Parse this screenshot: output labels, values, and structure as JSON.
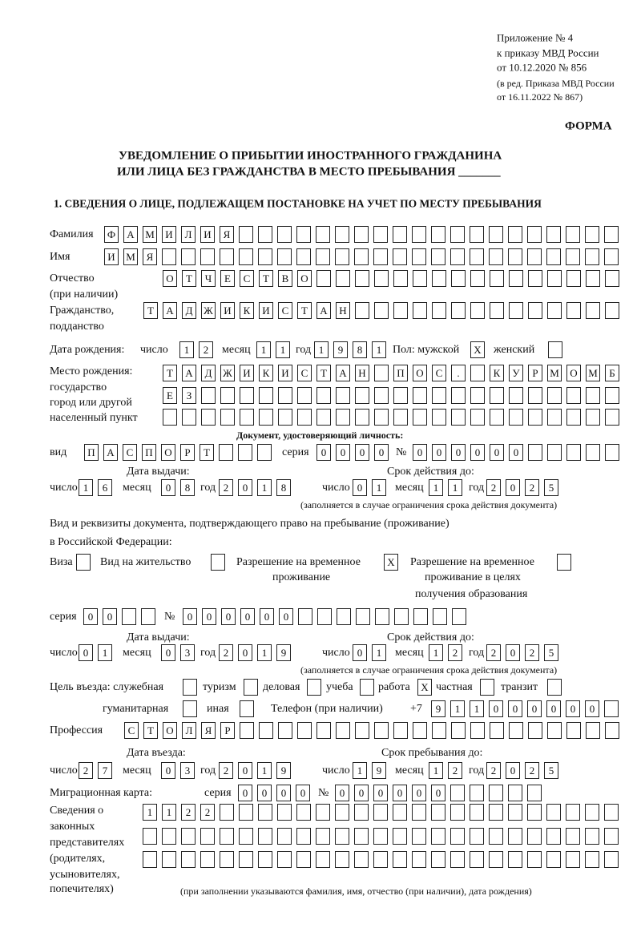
{
  "header": {
    "appendix": [
      "Приложение № 4",
      "к приказу МВД России",
      "от 10.12.2020 № 856"
    ],
    "revision": [
      "(в ред. Приказа МВД России",
      "от 16.11.2022 № 867)"
    ],
    "form_label": "ФОРМА",
    "title_line1": "УВЕДОМЛЕНИЕ О ПРИБЫТИИ ИНОСТРАННОГО ГРАЖДАНИНА",
    "title_line2": "ИЛИ ЛИЦА БЕЗ ГРАЖДАНСТВА В МЕСТО ПРЕБЫВАНИЯ _______",
    "section1": "1. СВЕДЕНИЯ О ЛИЦЕ, ПОДЛЕЖАЩЕМ ПОСТАНОВКЕ НА УЧЕТ ПО МЕСТУ ПРЕБЫВАНИЯ"
  },
  "labels": {
    "surname": "Фамилия",
    "name": "Имя",
    "patronymic": "Отчество",
    "patronymic_note": "(при наличии)",
    "citizenship": "Гражданство,",
    "citizenship2": "подданство",
    "birth_date": "Дата рождения:",
    "day": "число",
    "month": "месяц",
    "year": "год",
    "sex": "Пол: мужской",
    "female": "женский",
    "birthplace": [
      "Место рождения:",
      "государство",
      "город или другой",
      "населенный пункт"
    ],
    "id_doc_heading": "Документ, удостоверяющий личность:",
    "kind": "вид",
    "series": "серия",
    "number": "№",
    "issue_date": "Дата выдачи:",
    "valid_until": "Срок действия до:",
    "validity_note": "(заполняется в случае ограничения срока действия документа)",
    "residence_doc": "Вид и реквизиты документа, подтверждающего право на пребывание (проживание)",
    "residence_doc2": "в Российской Федерации:",
    "visa": "Виза",
    "residence_permit": "Вид на жительство",
    "temp_permit": [
      "Разрешение на временное",
      "проживание"
    ],
    "temp_permit_edu": [
      "Разрешение на временное",
      "проживание в целях",
      "получения образования"
    ],
    "purpose": "Цель въезда: служебная",
    "tourism": "туризм",
    "business": "деловая",
    "study": "учеба",
    "work": "работа",
    "private": "частная",
    "transit": "транзит",
    "humanitarian": "гуманитарная",
    "other": "иная",
    "phone": "Телефон (при наличии)",
    "phone_prefix": "+7",
    "profession": "Профессия",
    "entry_date": "Дата въезда:",
    "stay_until": "Срок пребывания до:",
    "migration_card": "Миграционная карта:",
    "representatives": [
      "Сведения о",
      "законных",
      "представителях",
      "(родителях,",
      "усыновителях,",
      "попечителях)"
    ],
    "representatives_note": "(при заполнении указываются фамилия, имя, отчество (при наличии), дата рождения)"
  },
  "values": {
    "surname": "ФАМИЛИЯ",
    "name": "ИМЯ",
    "patronymic": "ОТЧЕСТВО",
    "citizenship": "ТАДЖИКИСТАН",
    "birth_day": "12",
    "birth_month": "11",
    "birth_year": "1981",
    "sex_male": "X",
    "sex_female": "",
    "birthplace1": "ТАДЖИКИСТАН ПОС. КУРМОМБ",
    "birthplace2": "ЕЗ",
    "birthplace3": "",
    "id_kind": "ПАСПОРТ",
    "id_series": "0000",
    "id_number": "000000",
    "id_issue_day": "16",
    "id_issue_month": "08",
    "id_issue_year": "2018",
    "id_valid_day": "01",
    "id_valid_month": "11",
    "id_valid_year": "2025",
    "visa": "",
    "residence_permit": "",
    "temp_permit": "X",
    "temp_permit_edu": "",
    "res_series": "00",
    "res_number": "000000",
    "res_issue_day": "01",
    "res_issue_month": "03",
    "res_issue_year": "2019",
    "res_valid_day": "01",
    "res_valid_month": "12",
    "res_valid_year": "2025",
    "purpose_official": "",
    "purpose_tourism": "",
    "purpose_business": "",
    "purpose_study": "",
    "purpose_work": "X",
    "purpose_private": "",
    "purpose_transit": "",
    "purpose_humanitarian": "",
    "purpose_other": "",
    "phone": "911000000",
    "profession": "СТОЛЯР",
    "entry_day": "27",
    "entry_month": "03",
    "entry_year": "2019",
    "stay_day": "19",
    "stay_month": "12",
    "stay_year": "2025",
    "mig_series": "0000",
    "mig_number": "000000",
    "rep1": "1122",
    "rep2": "",
    "rep3": ""
  }
}
